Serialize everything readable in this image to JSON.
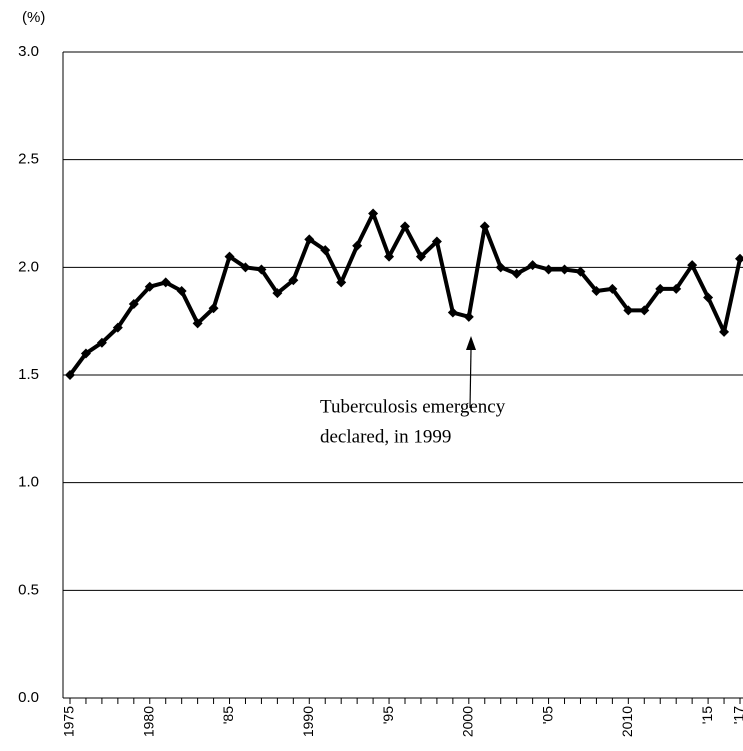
{
  "chart_data": {
    "type": "line",
    "y_label": "(%)",
    "categories": [
      "1975",
      null,
      null,
      null,
      null,
      "1980",
      null,
      null,
      null,
      null,
      "'85",
      null,
      null,
      null,
      null,
      "1990",
      null,
      null,
      null,
      null,
      "'95",
      null,
      null,
      null,
      null,
      "2000",
      null,
      null,
      null,
      null,
      "'05",
      null,
      null,
      null,
      null,
      "2010",
      null,
      null,
      null,
      null,
      "'15",
      null,
      "'17"
    ],
    "series": [
      {
        "color": "#000000",
        "values": [
          1.5,
          1.6,
          1.65,
          1.72,
          1.83,
          1.91,
          1.93,
          1.89,
          1.74,
          1.81,
          2.05,
          2.0,
          1.99,
          1.88,
          1.94,
          2.13,
          2.08,
          1.93,
          2.1,
          2.25,
          2.05,
          2.19,
          2.05,
          2.12,
          1.79,
          1.77,
          2.19,
          2.0,
          1.97,
          2.01,
          1.99,
          1.99,
          1.98,
          1.89,
          1.9,
          1.8,
          1.8,
          1.9,
          1.9,
          2.01,
          1.86,
          1.7,
          2.04
        ]
      }
    ],
    "ylim": [
      0,
      3
    ],
    "yticks": [
      {
        "value": 0,
        "label": "0.0"
      },
      {
        "value": 0.5,
        "label": "0.5"
      },
      {
        "value": 1,
        "label": "1.0"
      },
      {
        "value": 1.5,
        "label": "1.5"
      },
      {
        "value": 2,
        "label": "2.0"
      },
      {
        "value": 2.5,
        "label": "2.5"
      },
      {
        "value": 3,
        "label": "3.0"
      }
    ],
    "grid": true,
    "annotation": [
      "Tuberculosis emergency",
      "declared, in 1999"
    ]
  }
}
